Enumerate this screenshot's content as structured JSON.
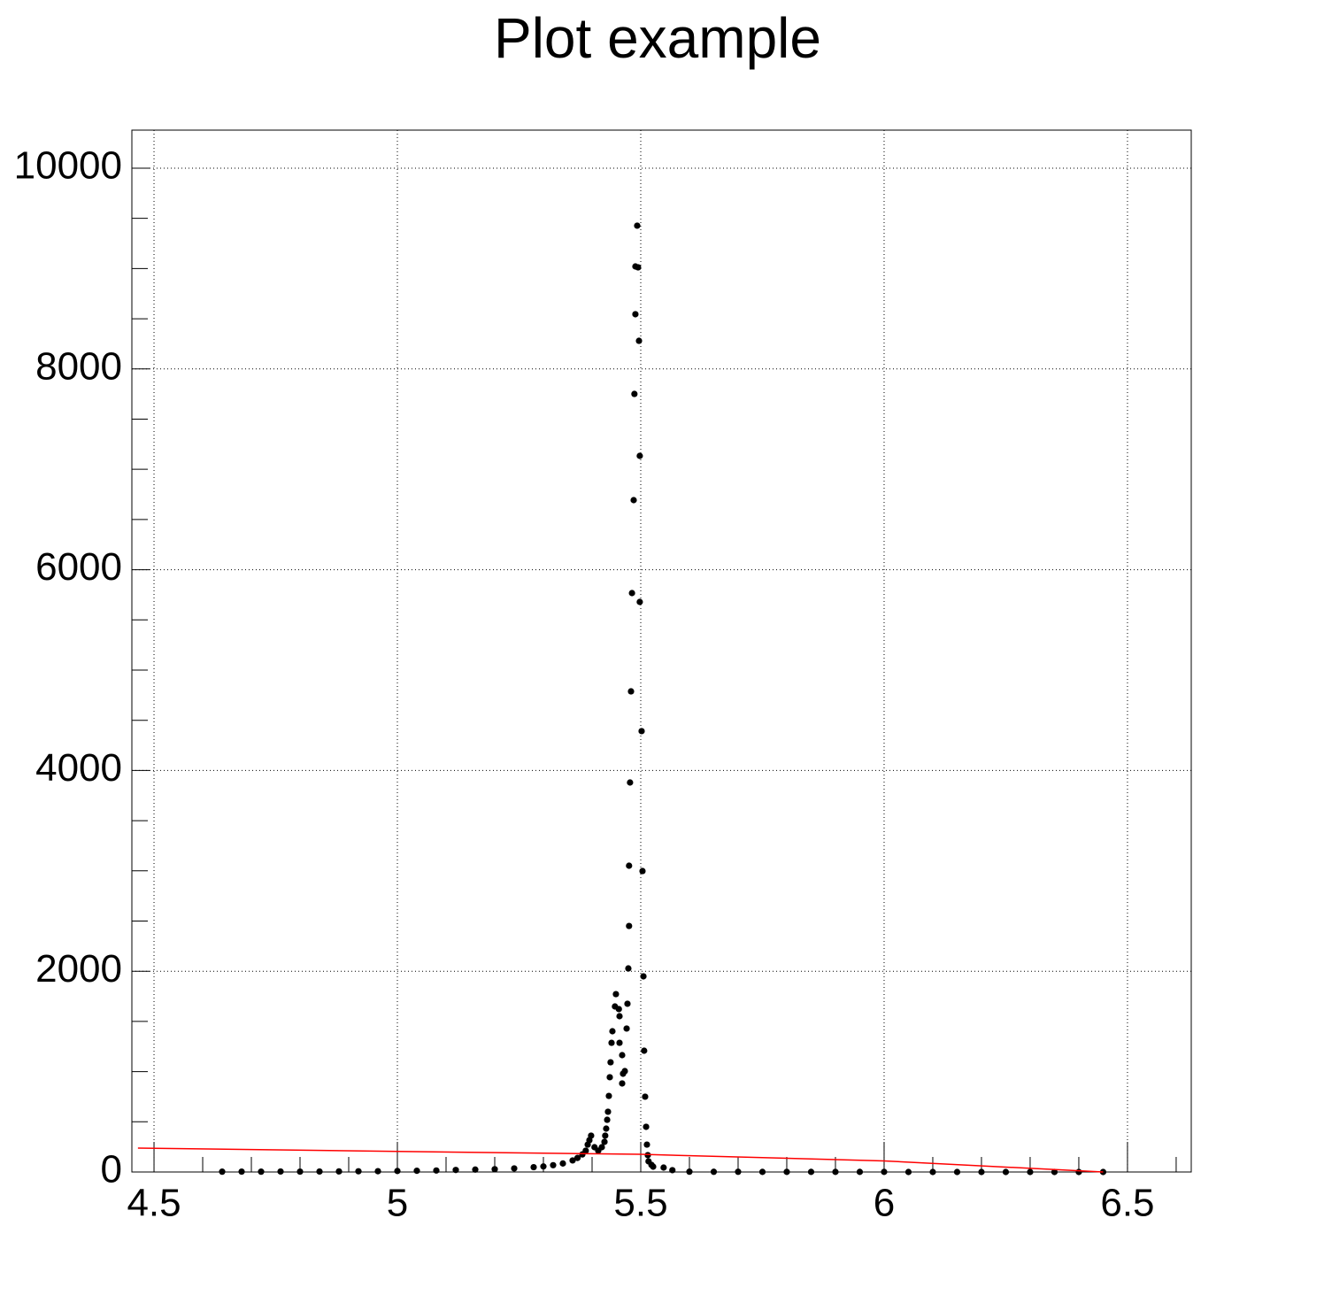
{
  "chart_data": {
    "type": "scatter",
    "title": "Plot example",
    "xlim": [
      4.4545,
      6.631
    ],
    "ylim": [
      0,
      10379
    ],
    "xticks": [
      4.5,
      5,
      5.5,
      6,
      6.5
    ],
    "yticks": [
      0,
      2000,
      4000,
      6000,
      8000,
      10000
    ],
    "xminorticks": [
      4.6,
      4.7,
      4.8,
      4.9,
      5.1,
      5.2,
      5.3,
      5.4,
      5.6,
      5.7,
      5.8,
      5.9,
      6.1,
      6.2,
      6.3,
      6.4,
      6.6
    ],
    "yminorticks": [
      500,
      1000,
      1500,
      2500,
      3000,
      3500,
      4500,
      5000,
      5500,
      6500,
      7000,
      7500,
      8500,
      9000,
      9500
    ],
    "grid": true,
    "series": [
      {
        "style": "markers",
        "color": "#000000",
        "x": [
          4.64,
          4.68,
          4.72,
          4.76,
          4.8,
          4.84,
          4.88,
          4.92,
          4.96,
          5.0,
          5.04,
          5.08,
          5.12,
          5.16,
          5.2,
          5.24,
          5.28,
          5.3,
          5.32,
          5.34,
          5.36,
          5.37,
          5.38,
          5.387,
          5.391,
          5.3945,
          5.398,
          5.405,
          5.4127,
          5.42,
          5.4255,
          5.427,
          5.429,
          5.431,
          5.4327,
          5.4345,
          5.4364,
          5.438,
          5.44,
          5.4418,
          5.447,
          5.449,
          5.455,
          5.4564,
          5.4564,
          5.4618,
          5.4618,
          5.4636,
          5.4673,
          5.471,
          5.4727,
          5.4745,
          5.476,
          5.476,
          5.478,
          5.48,
          5.482,
          5.4855,
          5.487,
          5.489,
          5.489,
          5.4927,
          5.4945,
          5.4964,
          5.498,
          5.498,
          5.5018,
          5.5036,
          5.5055,
          5.507,
          5.509,
          5.511,
          5.5127,
          5.5145,
          5.516,
          5.522,
          5.5255,
          5.547,
          5.565,
          5.6,
          5.65,
          5.7,
          5.75,
          5.8,
          5.85,
          5.9,
          5.95,
          6.0,
          6.05,
          6.1,
          6.15,
          6.2,
          6.25,
          6.3,
          6.35,
          6.4,
          6.45
        ],
        "values": [
          3,
          4,
          3,
          5,
          4,
          5,
          6,
          7,
          8,
          10,
          12,
          15,
          20,
          24,
          28,
          36,
          48,
          55,
          68,
          85,
          115,
          140,
          175,
          212,
          273,
          317,
          362,
          247,
          212,
          247,
          300,
          362,
          432,
          520,
          600,
          758,
          944,
          1093,
          1287,
          1402,
          1649,
          1772,
          1623,
          1552,
          1287,
          1164,
          882,
          979,
          1005,
          1429,
          1676,
          2028,
          2451,
          3051,
          3880,
          4788,
          5767,
          6693,
          7751,
          8545,
          9021,
          9427,
          9012,
          8280,
          7134,
          5679,
          4392,
          2998,
          1949,
          1208,
          750,
          450,
          273,
          168,
          106,
          71,
          53,
          44,
          18,
          3,
          2,
          2,
          1,
          1,
          1,
          1,
          1,
          1,
          0,
          0,
          0,
          0,
          0,
          0,
          0,
          0,
          0
        ]
      },
      {
        "style": "line",
        "color": "#ff0000",
        "x": [
          4.467,
          5.0,
          5.5,
          6.0,
          6.45
        ],
        "values": [
          238,
          205,
          176,
          110,
          0
        ]
      }
    ]
  }
}
